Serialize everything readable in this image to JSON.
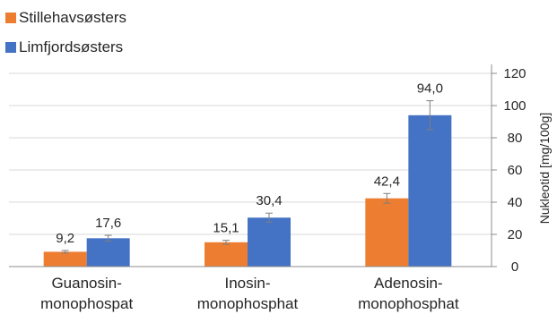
{
  "chart_data": {
    "type": "bar",
    "categories": [
      [
        "Guanosin-",
        "monophospat"
      ],
      [
        "Inosin-",
        "monophosphat"
      ],
      [
        "Adenosin-",
        "monophosphat"
      ]
    ],
    "series": [
      {
        "name": "Stillehavsøsters",
        "color": "#ED7D31",
        "values": [
          9.2,
          15.1,
          42.4
        ],
        "errors": [
          0.8,
          1.2,
          3.0
        ],
        "labels": [
          "9,2",
          "15,1",
          "42,4"
        ]
      },
      {
        "name": "Limfjordsøsters",
        "color": "#4472C4",
        "values": [
          17.6,
          30.4,
          94.0
        ],
        "errors": [
          1.8,
          2.8,
          9.0
        ],
        "labels": [
          "17,6",
          "30,4",
          "94,0"
        ]
      }
    ],
    "ylabel": "Nukleotid [mg/100g]",
    "ylim": [
      0,
      120
    ],
    "yticks": [
      0,
      20,
      40,
      60,
      80,
      100,
      120
    ],
    "y_axis_position": "right",
    "grid": true,
    "legend_position": "top-left",
    "error_bars": true
  }
}
